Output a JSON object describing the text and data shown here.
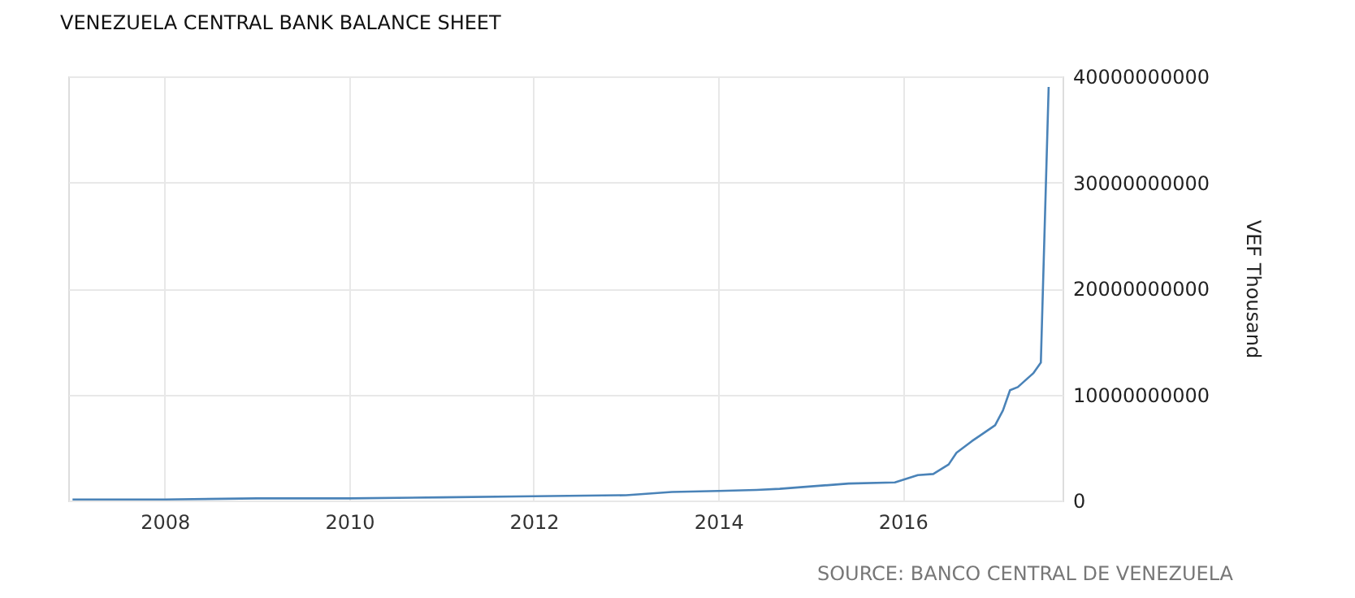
{
  "chart_data": {
    "type": "line",
    "title": "VENEZUELA CENTRAL BANK BALANCE SHEET",
    "ylabel": "VEF Thousand",
    "annotations": [
      "SOURCE: BANCO CENTRAL DE VENEZUELA"
    ],
    "x": [
      "2007-01",
      "2008-01",
      "2009-01",
      "2010-01",
      "2011-01",
      "2012-01",
      "2013-01",
      "2013-07",
      "2014-01",
      "2014-06",
      "2014-09",
      "2015-06",
      "2015-12",
      "2016-03",
      "2016-05",
      "2016-07",
      "2016-08",
      "2016-10",
      "2016-11",
      "2017-01",
      "2017-02",
      "2017-03",
      "2017-04",
      "2017-06",
      "2017-07",
      "2017-08"
    ],
    "series": [
      {
        "color": "#4a83b8",
        "values": [
          100000000,
          100000000,
          200000000,
          200000000,
          300000000,
          400000000,
          500000000,
          800000000,
          900000000,
          1000000000,
          1100000000,
          1600000000,
          1700000000,
          2400000000,
          2500000000,
          3400000000,
          4500000000,
          5600000000,
          6100000000,
          7100000000,
          8500000000,
          10400000000,
          10700000000,
          12000000000,
          13000000000,
          39000000000
        ]
      }
    ],
    "xlim": [
      "2006-12-15",
      "2017-09-25"
    ],
    "xticks": [
      {
        "value": "2008-01-01",
        "label": "2008"
      },
      {
        "value": "2010-01-01",
        "label": "2010"
      },
      {
        "value": "2012-01-01",
        "label": "2012"
      },
      {
        "value": "2014-01-01",
        "label": "2014"
      },
      {
        "value": "2016-01-01",
        "label": "2016"
      }
    ],
    "ylim": [
      0,
      40000000000
    ],
    "yticks": [
      0,
      10000000000,
      20000000000,
      30000000000,
      40000000000
    ],
    "grid": true,
    "marker": "none",
    "line_style": "solid"
  }
}
